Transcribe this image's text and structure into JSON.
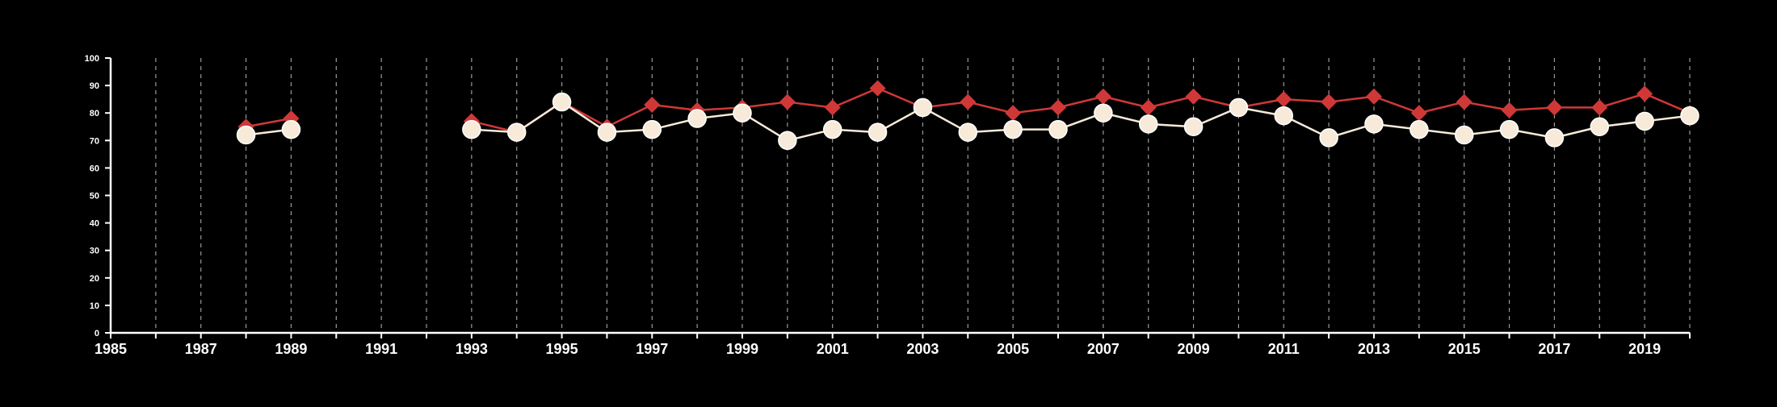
{
  "chart_data": {
    "type": "line",
    "title": "",
    "xlabel": "",
    "ylabel": "",
    "xlim": [
      1985,
      2020
    ],
    "ylim": [
      0,
      100
    ],
    "x_tick_labels": [
      "1985",
      "1987",
      "1989",
      "1991",
      "1993",
      "1995",
      "1997",
      "1999",
      "2001",
      "2003",
      "2005",
      "2007",
      "2009",
      "2011",
      "2013",
      "2015",
      "2017",
      "2019"
    ],
    "y_tick_labels": [
      "0",
      "10",
      "20",
      "30",
      "40",
      "50",
      "60",
      "70",
      "80",
      "90",
      "100"
    ],
    "grid": "vertical dashed lines at every year",
    "x": [
      1985,
      1986,
      1987,
      1988,
      1989,
      1990,
      1991,
      1992,
      1993,
      1994,
      1995,
      1996,
      1997,
      1998,
      1999,
      2000,
      2001,
      2002,
      2003,
      2004,
      2005,
      2006,
      2007,
      2008,
      2009,
      2010,
      2011,
      2012,
      2013,
      2014,
      2015,
      2016,
      2017,
      2018,
      2019,
      2020
    ],
    "series": [
      {
        "marker": "diamond",
        "color": "#d03838",
        "values": [
          null,
          null,
          null,
          75,
          78,
          null,
          null,
          null,
          77,
          73,
          84,
          75,
          83,
          81,
          82,
          84,
          82,
          89,
          82,
          84,
          80,
          82,
          86,
          82,
          86,
          82,
          85,
          84,
          86,
          80,
          84,
          81,
          82,
          82,
          87,
          80
        ]
      },
      {
        "marker": "circle",
        "color": "#f7ead9",
        "values": [
          null,
          null,
          null,
          72,
          74,
          null,
          null,
          null,
          74,
          73,
          84,
          73,
          74,
          78,
          80,
          70,
          74,
          73,
          82,
          73,
          74,
          74,
          80,
          76,
          75,
          82,
          79,
          71,
          76,
          74,
          72,
          74,
          71,
          75,
          77,
          79
        ]
      }
    ]
  },
  "colors": {
    "background": "#000000",
    "axis": "#ffffff",
    "gridline": "#9a9a9a"
  }
}
